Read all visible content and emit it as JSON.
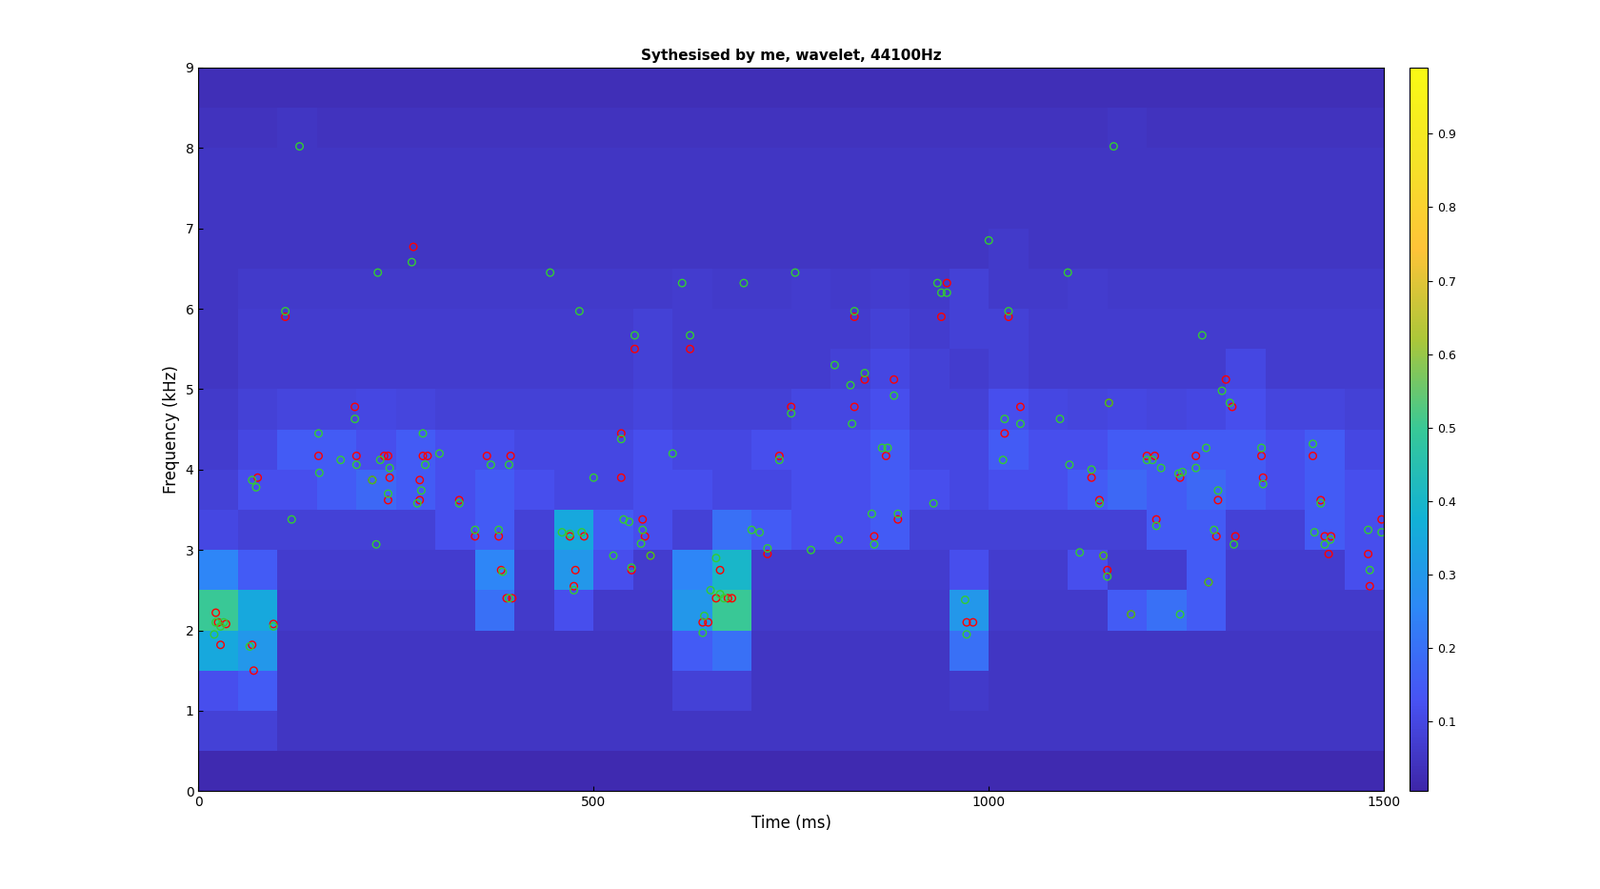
{
  "chart_data": {
    "type": "heatmap",
    "title": "Sythesised by me, wavelet, 44100Hz",
    "x_label": "Time (ms)",
    "y_label": "Frequency (kHz)",
    "xlim": [
      0,
      1500
    ],
    "xticks": [
      0,
      500,
      1000,
      1500
    ],
    "ylim": [
      0,
      9
    ],
    "yticks": [
      0,
      1,
      2,
      3,
      4,
      5,
      6,
      7,
      8,
      9
    ],
    "x_edges": [
      0,
      50,
      100,
      150,
      200,
      250,
      300,
      350,
      400,
      450,
      500,
      550,
      600,
      650,
      700,
      750,
      800,
      850,
      900,
      950,
      1000,
      1050,
      1100,
      1150,
      1200,
      1250,
      1300,
      1350,
      1400,
      1450,
      1500
    ],
    "y_edges": [
      0,
      0.5,
      1,
      1.5,
      2,
      2.5,
      3,
      3.5,
      4,
      4.5,
      5,
      5.5,
      6,
      6.5,
      7,
      7.5,
      8,
      8.5,
      9
    ],
    "cells": [
      [
        0.02,
        0.02,
        0.02,
        0.02,
        0.02,
        0.02,
        0.02,
        0.02,
        0.02,
        0.02,
        0.02,
        0.02,
        0.02,
        0.02,
        0.02,
        0.02,
        0.02,
        0.02,
        0.02,
        0.02,
        0.02,
        0.02,
        0.02,
        0.02,
        0.02,
        0.02,
        0.02,
        0.02,
        0.02,
        0.02
      ],
      [
        0.08,
        0.08,
        0.05,
        0.05,
        0.05,
        0.05,
        0.05,
        0.05,
        0.05,
        0.05,
        0.05,
        0.05,
        0.05,
        0.05,
        0.05,
        0.05,
        0.05,
        0.05,
        0.05,
        0.05,
        0.05,
        0.05,
        0.05,
        0.05,
        0.05,
        0.05,
        0.05,
        0.05,
        0.05,
        0.05
      ],
      [
        0.12,
        0.15,
        0.05,
        0.05,
        0.05,
        0.05,
        0.05,
        0.05,
        0.05,
        0.05,
        0.05,
        0.05,
        0.08,
        0.08,
        0.05,
        0.05,
        0.05,
        0.05,
        0.05,
        0.06,
        0.05,
        0.05,
        0.05,
        0.05,
        0.05,
        0.05,
        0.05,
        0.05,
        0.05,
        0.05
      ],
      [
        0.35,
        0.3,
        0.05,
        0.05,
        0.05,
        0.05,
        0.05,
        0.05,
        0.05,
        0.05,
        0.05,
        0.05,
        0.15,
        0.2,
        0.05,
        0.05,
        0.05,
        0.05,
        0.05,
        0.2,
        0.05,
        0.05,
        0.05,
        0.05,
        0.05,
        0.05,
        0.05,
        0.05,
        0.05,
        0.05
      ],
      [
        0.5,
        0.35,
        0.06,
        0.06,
        0.06,
        0.06,
        0.06,
        0.2,
        0.06,
        0.12,
        0.06,
        0.06,
        0.3,
        0.5,
        0.06,
        0.06,
        0.06,
        0.06,
        0.06,
        0.3,
        0.06,
        0.06,
        0.06,
        0.15,
        0.2,
        0.15,
        0.06,
        0.06,
        0.06,
        0.06
      ],
      [
        0.25,
        0.15,
        0.07,
        0.07,
        0.07,
        0.07,
        0.07,
        0.25,
        0.07,
        0.3,
        0.12,
        0.07,
        0.25,
        0.4,
        0.07,
        0.07,
        0.07,
        0.07,
        0.07,
        0.12,
        0.07,
        0.07,
        0.12,
        0.07,
        0.07,
        0.15,
        0.07,
        0.07,
        0.07,
        0.12
      ],
      [
        0.1,
        0.08,
        0.08,
        0.08,
        0.08,
        0.08,
        0.12,
        0.15,
        0.08,
        0.35,
        0.15,
        0.12,
        0.08,
        0.2,
        0.15,
        0.12,
        0.12,
        0.15,
        0.08,
        0.08,
        0.08,
        0.08,
        0.08,
        0.08,
        0.15,
        0.15,
        0.08,
        0.08,
        0.15,
        0.12
      ],
      [
        0.08,
        0.12,
        0.12,
        0.15,
        0.18,
        0.15,
        0.12,
        0.15,
        0.12,
        0.1,
        0.1,
        0.12,
        0.12,
        0.1,
        0.1,
        0.12,
        0.12,
        0.15,
        0.12,
        0.1,
        0.12,
        0.12,
        0.15,
        0.18,
        0.15,
        0.18,
        0.15,
        0.12,
        0.15,
        0.12
      ],
      [
        0.07,
        0.1,
        0.15,
        0.15,
        0.12,
        0.15,
        0.12,
        0.12,
        0.1,
        0.1,
        0.1,
        0.12,
        0.1,
        0.1,
        0.12,
        0.12,
        0.12,
        0.15,
        0.1,
        0.1,
        0.15,
        0.12,
        0.12,
        0.15,
        0.15,
        0.15,
        0.15,
        0.12,
        0.15,
        0.1
      ],
      [
        0.06,
        0.08,
        0.09,
        0.09,
        0.1,
        0.09,
        0.08,
        0.08,
        0.08,
        0.08,
        0.08,
        0.09,
        0.08,
        0.08,
        0.08,
        0.1,
        0.1,
        0.12,
        0.08,
        0.08,
        0.12,
        0.1,
        0.09,
        0.1,
        0.09,
        0.1,
        0.12,
        0.09,
        0.09,
        0.08
      ],
      [
        0.05,
        0.07,
        0.07,
        0.07,
        0.07,
        0.07,
        0.07,
        0.07,
        0.07,
        0.07,
        0.07,
        0.08,
        0.07,
        0.07,
        0.07,
        0.07,
        0.08,
        0.1,
        0.08,
        0.07,
        0.08,
        0.07,
        0.07,
        0.07,
        0.07,
        0.07,
        0.1,
        0.07,
        0.07,
        0.07
      ],
      [
        0.05,
        0.07,
        0.07,
        0.07,
        0.07,
        0.07,
        0.07,
        0.07,
        0.07,
        0.07,
        0.07,
        0.08,
        0.07,
        0.07,
        0.07,
        0.07,
        0.07,
        0.08,
        0.07,
        0.08,
        0.08,
        0.07,
        0.07,
        0.07,
        0.07,
        0.07,
        0.07,
        0.07,
        0.07,
        0.07
      ],
      [
        0.05,
        0.06,
        0.06,
        0.06,
        0.06,
        0.06,
        0.06,
        0.06,
        0.06,
        0.06,
        0.06,
        0.06,
        0.07,
        0.06,
        0.06,
        0.07,
        0.06,
        0.07,
        0.06,
        0.08,
        0.06,
        0.06,
        0.07,
        0.06,
        0.06,
        0.06,
        0.06,
        0.06,
        0.06,
        0.06
      ],
      [
        0.05,
        0.05,
        0.05,
        0.05,
        0.05,
        0.05,
        0.05,
        0.05,
        0.05,
        0.05,
        0.05,
        0.05,
        0.05,
        0.05,
        0.05,
        0.05,
        0.05,
        0.05,
        0.05,
        0.05,
        0.06,
        0.05,
        0.05,
        0.05,
        0.05,
        0.05,
        0.05,
        0.05,
        0.05,
        0.05
      ],
      [
        0.05,
        0.05,
        0.05,
        0.05,
        0.05,
        0.05,
        0.05,
        0.05,
        0.05,
        0.05,
        0.05,
        0.05,
        0.05,
        0.05,
        0.05,
        0.05,
        0.05,
        0.05,
        0.05,
        0.05,
        0.05,
        0.05,
        0.05,
        0.05,
        0.05,
        0.05,
        0.05,
        0.05,
        0.05,
        0.05
      ],
      [
        0.05,
        0.05,
        0.05,
        0.05,
        0.05,
        0.05,
        0.05,
        0.05,
        0.05,
        0.05,
        0.05,
        0.05,
        0.05,
        0.05,
        0.05,
        0.05,
        0.05,
        0.05,
        0.05,
        0.05,
        0.05,
        0.05,
        0.05,
        0.05,
        0.05,
        0.05,
        0.05,
        0.05,
        0.05,
        0.05
      ],
      [
        0.04,
        0.04,
        0.05,
        0.04,
        0.04,
        0.04,
        0.04,
        0.04,
        0.04,
        0.04,
        0.04,
        0.04,
        0.04,
        0.04,
        0.04,
        0.04,
        0.04,
        0.04,
        0.04,
        0.04,
        0.04,
        0.04,
        0.04,
        0.05,
        0.04,
        0.04,
        0.04,
        0.04,
        0.04,
        0.04
      ],
      [
        0.03,
        0.03,
        0.03,
        0.03,
        0.03,
        0.03,
        0.03,
        0.03,
        0.03,
        0.03,
        0.03,
        0.03,
        0.03,
        0.03,
        0.03,
        0.03,
        0.03,
        0.03,
        0.03,
        0.03,
        0.03,
        0.03,
        0.03,
        0.03,
        0.03,
        0.03,
        0.03,
        0.03,
        0.03,
        0.03
      ]
    ],
    "color_range": [
      0.005,
      0.99
    ],
    "color_ticks": [
      0.1,
      0.2,
      0.3,
      0.4,
      0.5,
      0.6,
      0.7,
      0.8,
      0.9
    ],
    "series": [
      {
        "type": "scatter",
        "color": "#ff0000",
        "marker": "o",
        "x": [
          22,
          25,
          28,
          35,
          68,
          70,
          75,
          95,
          110,
          152,
          198,
          200,
          220,
          235,
          240,
          242,
          240,
          272,
          280,
          284,
          290,
          280,
          330,
          350,
          365,
          380,
          383,
          390,
          397,
          395,
          470,
          477,
          475,
          488,
          535,
          535,
          548,
          552,
          562,
          565,
          572,
          622,
          638,
          645,
          655,
          660,
          670,
          675,
          720,
          735,
          750,
          830,
          830,
          843,
          855,
          870,
          880,
          885,
          940,
          947,
          972,
          980,
          1020,
          1025,
          1040,
          1130,
          1140,
          1145,
          1150,
          1152,
          1180,
          1200,
          1210,
          1212,
          1242,
          1262,
          1278,
          1288,
          1290,
          1300,
          1308,
          1312,
          1345,
          1347,
          1410,
          1420,
          1425,
          1430,
          1433,
          1480,
          1482,
          1497
        ],
        "y": [
          2.22,
          2.1,
          1.82,
          2.08,
          1.82,
          1.5,
          3.9,
          2.08,
          5.9,
          4.17,
          4.78,
          4.17,
          3.87,
          4.17,
          4.17,
          3.9,
          3.62,
          6.77,
          3.87,
          4.17,
          4.17,
          3.62,
          3.62,
          3.17,
          4.17,
          3.17,
          2.75,
          2.4,
          2.4,
          4.17,
          3.17,
          2.75,
          2.55,
          3.17,
          4.45,
          3.9,
          2.75,
          5.5,
          3.38,
          3.17,
          2.93,
          5.5,
          2.1,
          2.1,
          2.4,
          2.75,
          2.4,
          2.4,
          2.95,
          4.17,
          4.78,
          4.78,
          5.9,
          5.12,
          3.17,
          4.17,
          5.12,
          3.38,
          5.9,
          6.32,
          2.1,
          2.1,
          4.45,
          5.9,
          4.78,
          3.9,
          3.62,
          2.93,
          2.75,
          4.83,
          2.2,
          4.17,
          4.17,
          3.38,
          3.9,
          4.17,
          2.6,
          3.17,
          3.62,
          5.12,
          4.78,
          3.17,
          4.17,
          3.9,
          4.17,
          3.62,
          3.17,
          2.95,
          3.17,
          2.95,
          2.55,
          3.38
        ]
      },
      {
        "type": "scatter",
        "color": "#33cc33",
        "marker": "o",
        "x": [
          20,
          22,
          28,
          32,
          65,
          68,
          73,
          95,
          110,
          118,
          128,
          152,
          153,
          180,
          198,
          200,
          220,
          225,
          227,
          230,
          240,
          242,
          270,
          277,
          282,
          284,
          287,
          305,
          330,
          350,
          370,
          380,
          385,
          393,
          393,
          445,
          460,
          470,
          475,
          482,
          485,
          500,
          525,
          535,
          538,
          545,
          548,
          552,
          560,
          562,
          572,
          600,
          612,
          622,
          638,
          640,
          648,
          655,
          660,
          665,
          690,
          700,
          710,
          720,
          735,
          750,
          755,
          775,
          805,
          810,
          825,
          827,
          830,
          843,
          852,
          855,
          865,
          872,
          880,
          885,
          930,
          935,
          940,
          947,
          970,
          972,
          1000,
          1018,
          1020,
          1025,
          1040,
          1090,
          1100,
          1102,
          1115,
          1130,
          1140,
          1145,
          1150,
          1152,
          1158,
          1180,
          1200,
          1207,
          1212,
          1218,
          1240,
          1242,
          1245,
          1262,
          1270,
          1275,
          1278,
          1285,
          1290,
          1295,
          1305,
          1310,
          1345,
          1347,
          1410,
          1412,
          1420,
          1425,
          1432,
          1480,
          1482,
          1497
        ],
        "y": [
          1.95,
          2.1,
          2.05,
          2.1,
          1.8,
          3.87,
          3.78,
          2.05,
          5.97,
          3.38,
          8.02,
          4.45,
          3.96,
          4.12,
          4.63,
          4.06,
          3.87,
          3.07,
          6.45,
          4.12,
          3.7,
          4.02,
          6.58,
          3.58,
          3.74,
          4.45,
          4.06,
          4.2,
          3.58,
          3.25,
          4.06,
          3.25,
          2.73,
          2.4,
          4.06,
          6.45,
          3.22,
          3.2,
          2.5,
          5.97,
          3.22,
          3.9,
          2.93,
          4.38,
          3.38,
          3.35,
          2.78,
          5.67,
          3.08,
          3.25,
          2.93,
          4.2,
          6.32,
          5.67,
          1.97,
          2.18,
          2.5,
          2.9,
          2.45,
          2.4,
          6.32,
          3.25,
          3.22,
          3.02,
          4.12,
          4.7,
          6.45,
          3.0,
          5.3,
          3.13,
          5.05,
          4.57,
          5.97,
          5.2,
          3.45,
          3.07,
          4.27,
          4.27,
          4.92,
          3.45,
          3.58,
          6.32,
          6.2,
          6.2,
          2.38,
          1.95,
          6.85,
          4.12,
          4.63,
          5.97,
          4.57,
          4.63,
          6.45,
          4.06,
          2.97,
          4.0,
          3.58,
          2.93,
          2.67,
          4.83,
          8.02,
          2.2,
          4.12,
          4.12,
          3.3,
          4.02,
          3.95,
          2.2,
          3.97,
          4.02,
          5.67,
          4.27,
          2.6,
          3.25,
          3.74,
          4.98,
          4.83,
          3.07,
          4.27,
          3.82,
          4.32,
          3.22,
          3.58,
          3.07,
          3.13,
          3.25,
          2.75,
          3.22
        ]
      }
    ]
  }
}
